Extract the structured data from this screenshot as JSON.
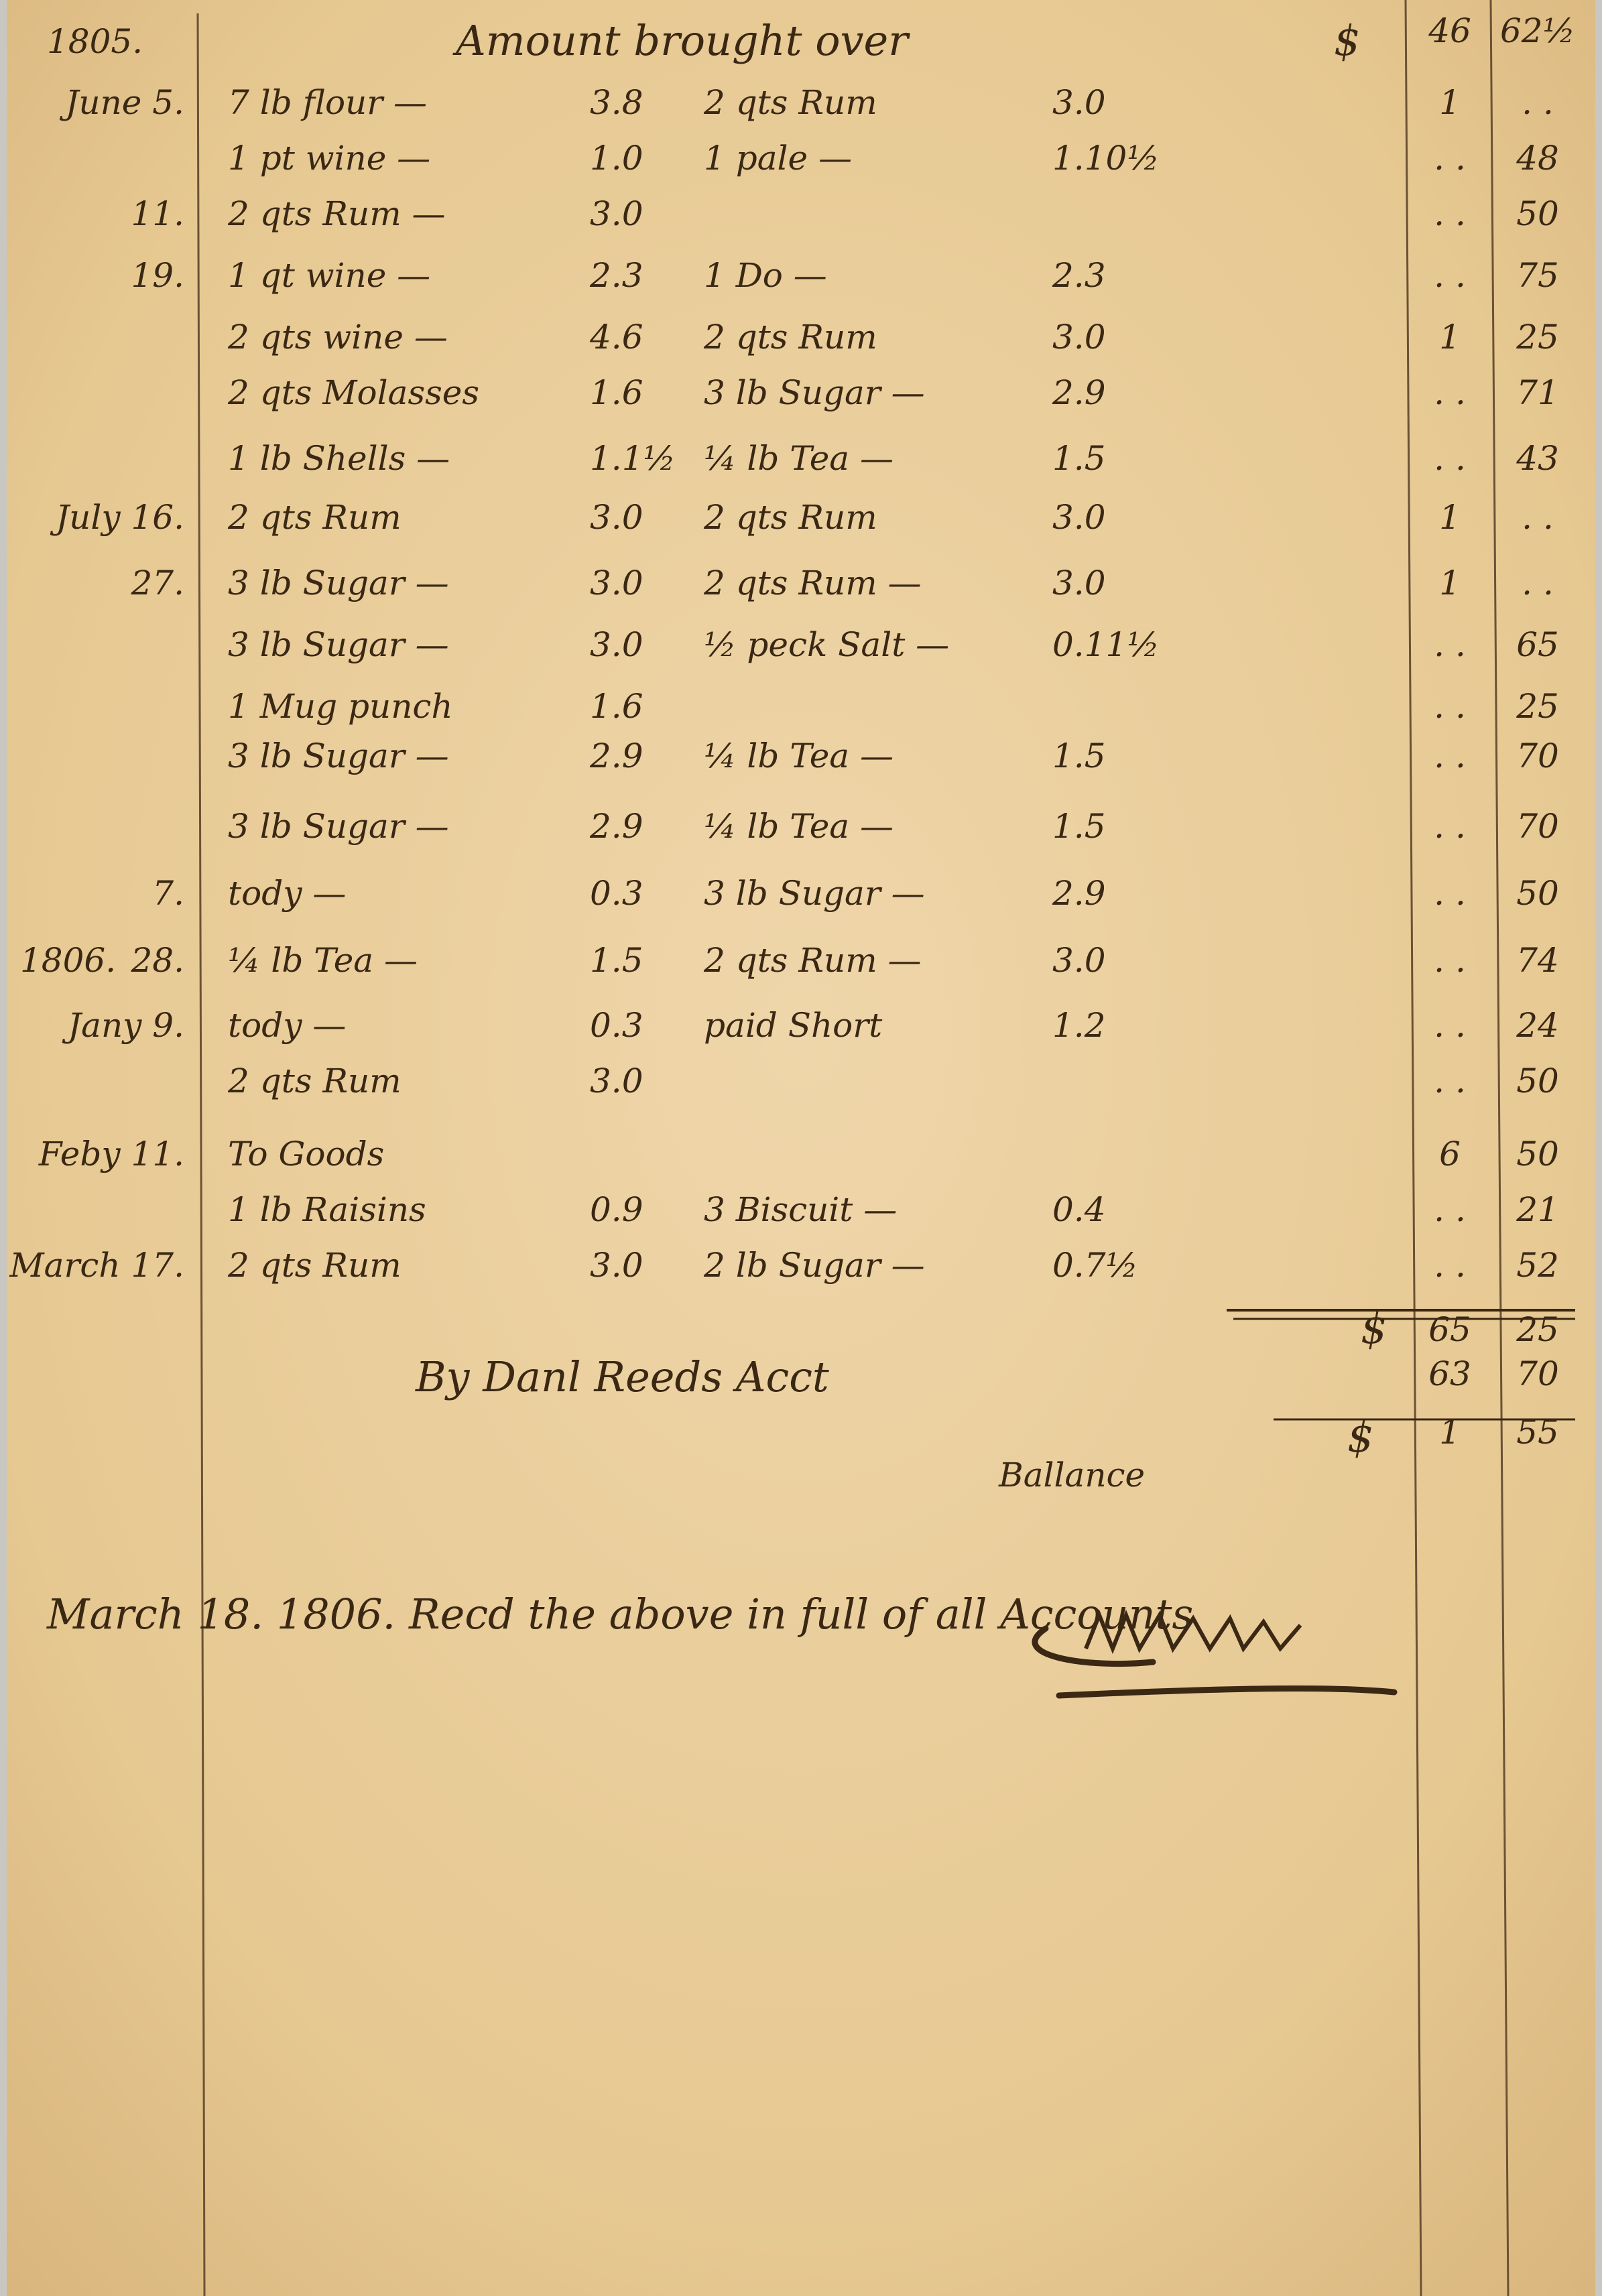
{
  "header": {
    "year": "1805.",
    "title": "Amount brought over",
    "currency": "$",
    "dollars": "46",
    "cents": "62½"
  },
  "rows": [
    {
      "date": "June 5.",
      "item1": "7 lb flour —",
      "price1": "3.8",
      "item2": "2 qts Rum",
      "price2": "3.0",
      "dollars": "1",
      "cents": ". ."
    },
    {
      "item1": "1 pt wine —",
      "price1": "1.0",
      "item2": "1 pale —",
      "price2": "1.10½",
      "dollars": ". .",
      "cents": "48"
    },
    {
      "date": "11.",
      "item1": "2 qts Rum —",
      "price1": "3.0",
      "dollars": ". .",
      "cents": "50"
    },
    {
      "date": "19.",
      "item1": "1 qt wine —",
      "price1": "2.3",
      "item2": "1 Do —",
      "price2": "2.3",
      "dollars": ". .",
      "cents": "75"
    },
    {
      "item1": "2 qts wine —",
      "price1": "4.6",
      "item2": "2 qts Rum",
      "price2": "3.0",
      "dollars": "1",
      "cents": "25"
    },
    {
      "item1": "2 qts Molasses",
      "price1": "1.6",
      "item2": "3 lb Sugar —",
      "price2": "2.9",
      "dollars": ". .",
      "cents": "71"
    },
    {
      "item1": "1 lb Shells —",
      "price1": "1.1½",
      "item2": "¼ lb Tea —",
      "price2": "1.5",
      "dollars": ". .",
      "cents": "43"
    },
    {
      "date": "July 16.",
      "item1": "2 qts Rum",
      "price1": "3.0",
      "item2": "2 qts Rum",
      "price2": "3.0",
      "dollars": "1",
      "cents": ". ."
    },
    {
      "date": "27.",
      "item1": "3 lb Sugar —",
      "price1": "3.0",
      "item2": "2 qts Rum —",
      "price2": "3.0",
      "dollars": "1",
      "cents": ". ."
    },
    {
      "item1": "3 lb Sugar —",
      "price1": "3.0",
      "item2": "½ peck Salt —",
      "price2": "0.11½",
      "dollars": ". .",
      "cents": "65"
    },
    {
      "item1": "1 Mug punch",
      "price1": "1.6",
      "dollars": ". .",
      "cents": "25"
    },
    {
      "item1": "3 lb Sugar —",
      "price1": "2.9",
      "item2": "¼ lb Tea —",
      "price2": "1.5",
      "dollars": ". .",
      "cents": "70"
    },
    {
      "item1": "3 lb Sugar —",
      "price1": "2.9",
      "item2": "¼ lb Tea —",
      "price2": "1.5",
      "dollars": ". .",
      "cents": "70"
    },
    {
      "date": "7.",
      "item1": "tody —",
      "price1": "0.3",
      "item2": "3 lb Sugar —",
      "price2": "2.9",
      "dollars": ". .",
      "cents": "50"
    },
    {
      "year": "1806.",
      "date": "28.",
      "item1": "¼ lb Tea —",
      "price1": "1.5",
      "item2": "2 qts Rum —",
      "price2": "3.0",
      "dollars": ". .",
      "cents": "74"
    },
    {
      "date": "Jany 9.",
      "item1": "tody —",
      "price1": "0.3",
      "item2": "paid Short",
      "price2": "1.2",
      "dollars": ". .",
      "cents": "24"
    },
    {
      "item1": "2 qts Rum",
      "price1": "3.0",
      "dollars": ". .",
      "cents": "50"
    },
    {
      "date": "Feby 11.",
      "item1": "To Goods",
      "dollars": "6",
      "cents": "50"
    },
    {
      "item1": "1 lb Raisins",
      "price1": "0.9",
      "item2": "3 Biscuit —",
      "price2": "0.4",
      "dollars": ". .",
      "cents": "21"
    },
    {
      "date": "March 17.",
      "item1": "2 qts Rum",
      "price1": "3.0",
      "item2": "2 lb Sugar —",
      "price2": "0.7½",
      "dollars": ". .",
      "cents": "52"
    }
  ],
  "total": {
    "currency": "$",
    "dollars": "65",
    "cents": "25"
  },
  "credit": {
    "label": "By Danl Reeds Acct",
    "dollars": "63",
    "cents": "70"
  },
  "balance": {
    "currency": "$",
    "dollars": "1",
    "cents": "55",
    "label": "Ballance"
  },
  "receipt": "March 18. 1806. Recd the above in full of all Accounts"
}
